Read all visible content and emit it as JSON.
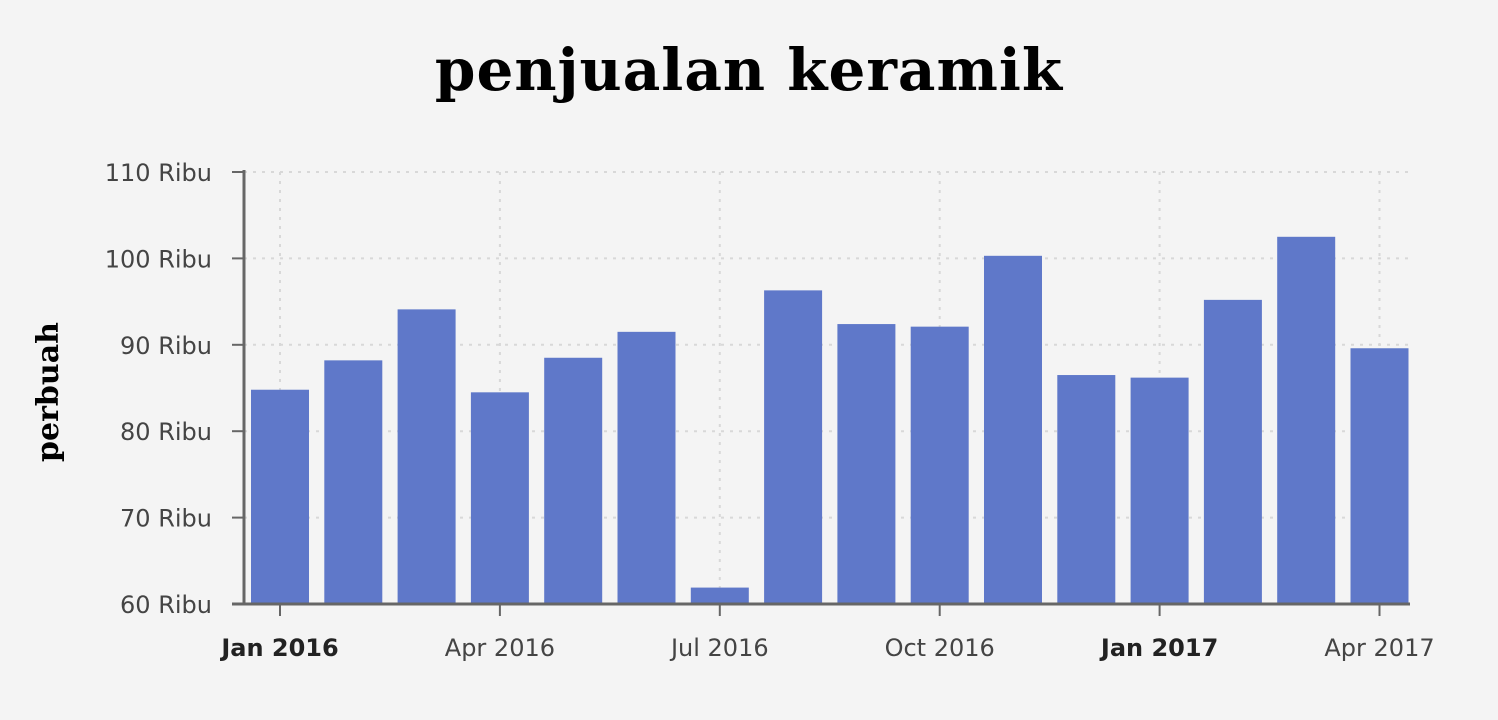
{
  "chart_data": {
    "type": "bar",
    "title": "penjualan keramik",
    "xlabel": "",
    "ylabel": "perbuah",
    "x_start": "Jan 2016",
    "x_end": "Apr 2017",
    "categories": [
      "Jan 2016",
      "Feb 2016",
      "Mar 2016",
      "Apr 2016",
      "May 2016",
      "Jun 2016",
      "Jul 2016",
      "Aug 2016",
      "Sep 2016",
      "Oct 2016",
      "Nov 2016",
      "Dec 2016",
      "Jan 2017",
      "Feb 2017",
      "Mar 2017",
      "Apr 2017"
    ],
    "values": [
      84800,
      88200,
      94100,
      84500,
      88500,
      91500,
      61900,
      96300,
      92400,
      92100,
      100300,
      86500,
      86200,
      95200,
      102500,
      89600
    ],
    "ylim": [
      60000,
      110000
    ],
    "yticks": [
      {
        "value": 60000,
        "label": "60 Ribu"
      },
      {
        "value": 70000,
        "label": "70 Ribu"
      },
      {
        "value": 80000,
        "label": "80 Ribu"
      },
      {
        "value": 90000,
        "label": "90 Ribu"
      },
      {
        "value": 100000,
        "label": "100 Ribu"
      },
      {
        "value": 110000,
        "label": "110 Ribu"
      }
    ],
    "xticks": [
      {
        "index": 0,
        "label": "Jan 2016",
        "bold": true
      },
      {
        "index": 3,
        "label": "Apr 2016",
        "bold": false
      },
      {
        "index": 6,
        "label": "Jul 2016",
        "bold": false
      },
      {
        "index": 9,
        "label": "Oct 2016",
        "bold": false
      },
      {
        "index": 12,
        "label": "Jan 2017",
        "bold": true
      },
      {
        "index": 15,
        "label": "Apr 2017",
        "bold": false
      }
    ],
    "grid": true,
    "bar_color": "#5f78c9",
    "legend": "none"
  }
}
